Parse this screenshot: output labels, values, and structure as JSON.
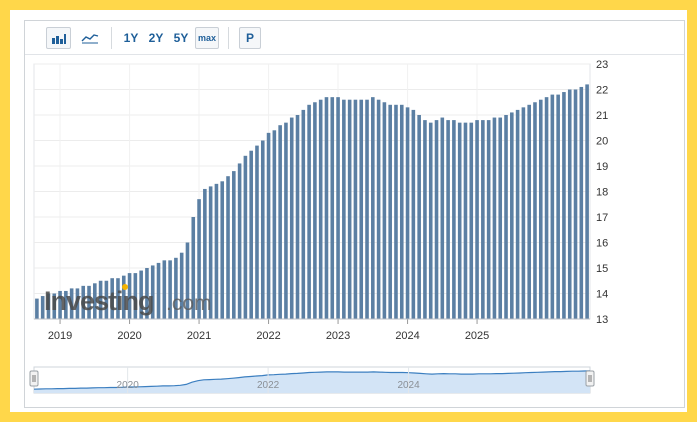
{
  "toolbar": {
    "bar_chart_icon": "bar-chart-icon",
    "line_chart_icon": "line-chart-icon",
    "range_1y": "1Y",
    "range_2y": "2Y",
    "range_5y": "5Y",
    "range_max": "max",
    "p_button": "P"
  },
  "watermark": {
    "brand_part1": "Investing",
    "brand_part2": ".com"
  },
  "colors": {
    "bar": "#5B7FA3",
    "navigator_fill": "#d3e4f6",
    "navigator_line": "#3c7fc0",
    "accent": "#1f5f99",
    "frame": "#FFD74A"
  },
  "chart_data": {
    "type": "bar",
    "title": "",
    "xlabel": "",
    "ylabel": "",
    "ylim": [
      13,
      23
    ],
    "yticks": [
      "23",
      "22",
      "21",
      "20",
      "19",
      "18",
      "17",
      "16",
      "15",
      "14",
      "13"
    ],
    "xticks": [
      "2019",
      "2020",
      "2021",
      "2022",
      "2023",
      "2024",
      "2025"
    ],
    "y_axis_position": "right",
    "grid": true,
    "frequency": "monthly",
    "start": "2018-09",
    "values": [
      13.8,
      13.9,
      14.0,
      14.0,
      14.1,
      14.1,
      14.2,
      14.2,
      14.3,
      14.3,
      14.4,
      14.5,
      14.5,
      14.6,
      14.6,
      14.7,
      14.8,
      14.8,
      14.9,
      15.0,
      15.1,
      15.2,
      15.3,
      15.3,
      15.4,
      15.6,
      16.0,
      17.0,
      17.7,
      18.1,
      18.2,
      18.3,
      18.4,
      18.6,
      18.8,
      19.1,
      19.4,
      19.6,
      19.8,
      20.0,
      20.3,
      20.4,
      20.6,
      20.7,
      20.9,
      21.0,
      21.2,
      21.4,
      21.5,
      21.6,
      21.7,
      21.7,
      21.7,
      21.6,
      21.6,
      21.6,
      21.6,
      21.6,
      21.7,
      21.6,
      21.5,
      21.4,
      21.4,
      21.4,
      21.3,
      21.2,
      21.0,
      20.8,
      20.7,
      20.8,
      20.9,
      20.8,
      20.8,
      20.7,
      20.7,
      20.7,
      20.8,
      20.8,
      20.8,
      20.9,
      20.9,
      21.0,
      21.1,
      21.2,
      21.3,
      21.4,
      21.5,
      21.6,
      21.7,
      21.8,
      21.8,
      21.9,
      22.0,
      22.0,
      22.1,
      22.2
    ],
    "navigator": {
      "xticks": [
        "2020",
        "2022",
        "2024"
      ]
    }
  }
}
